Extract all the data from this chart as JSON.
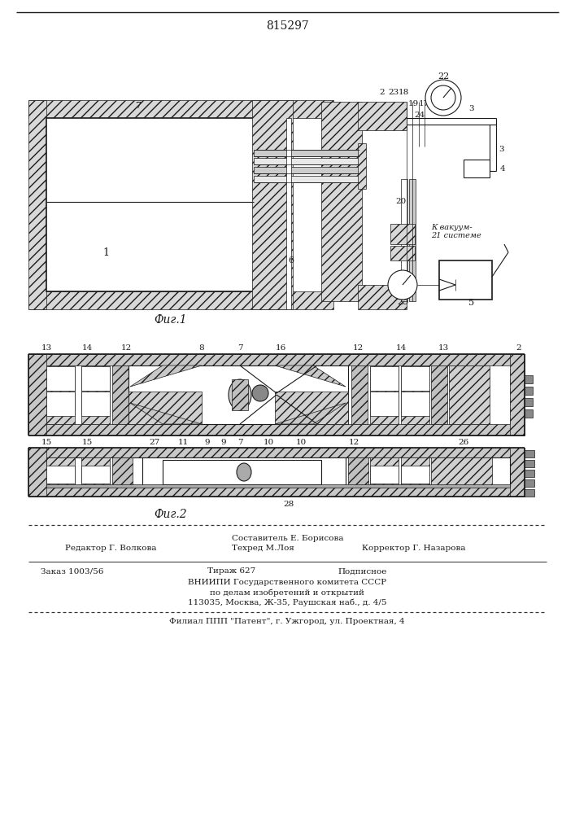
{
  "patent_number": "815297",
  "fig1_label": "Фиг.1",
  "fig2_label": "Фиг.2",
  "editor_line": "Редактор Г. Волкова",
  "composer_line": "Составитель Е. Борисова",
  "techred_line": "Техред М.Лоя",
  "corrector_line": "Корректор Г. Назарова",
  "order_line": "Заказ 1003/56",
  "tirazh_line": "Тираж 627",
  "podpisnoe_line": "Подписное",
  "vniiipi_line": "ВНИИПИ Государственного комитета СССР",
  "po_delam_line": "по делам изобретений и открытий",
  "address_line": "113035, Москва, Ж-35, Раушская наб., д. 4/5",
  "filial_line": "Филиал ППП \"Патент\", г. Ужгород, ул. Проектная, 4",
  "fig_width": 7.07,
  "fig_height": 10.0,
  "dpi": 100
}
